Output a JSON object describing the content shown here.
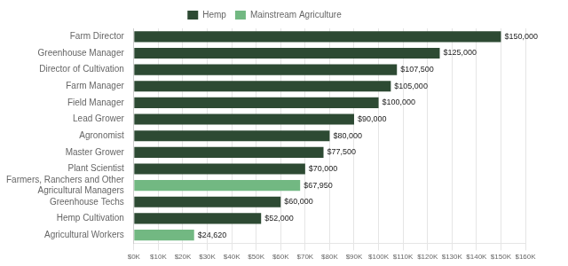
{
  "chart_data": {
    "type": "bar",
    "orientation": "horizontal",
    "stacked": true,
    "categories": [
      "Farm Director",
      "Greenhouse Manager",
      "Director of Cultivation",
      "Farm Manager",
      "Field Manager",
      "Lead Grower",
      "Agronomist",
      "Master Grower",
      "Plant Scientist",
      "Farmers, Ranchers and Other\nAgricultural Managers",
      "Greenhouse Techs",
      "Hemp Cultivation",
      "Agricultural Workers"
    ],
    "series": [
      {
        "name": "Hemp",
        "color": "#2d4a33",
        "values": [
          150000,
          125000,
          107500,
          105000,
          100000,
          90000,
          80000,
          77500,
          70000,
          null,
          60000,
          52000,
          null
        ],
        "value_labels": [
          "$150,000",
          "$125,000",
          "$107,500",
          "$105,000",
          "$100,000",
          "$90,000",
          "$80,000",
          "$77,500",
          "$70,000",
          null,
          "$60,000",
          "$52,000",
          null
        ]
      },
      {
        "name": "Mainstream Agriculture",
        "color": "#72b882",
        "values": [
          null,
          null,
          null,
          null,
          null,
          null,
          null,
          null,
          null,
          67950,
          null,
          null,
          24620
        ],
        "value_labels": [
          null,
          null,
          null,
          null,
          null,
          null,
          null,
          null,
          null,
          "$67,950",
          null,
          null,
          "$24,620"
        ]
      }
    ],
    "xlim": [
      0,
      160000
    ],
    "xticks": [
      {
        "value": 0,
        "label": "$0K"
      },
      {
        "value": 10000,
        "label": "$10K"
      },
      {
        "value": 20000,
        "label": "$20K"
      },
      {
        "value": 30000,
        "label": "$30K"
      },
      {
        "value": 40000,
        "label": "$40K"
      },
      {
        "value": 50000,
        "label": "$50K"
      },
      {
        "value": 60000,
        "label": "$60K"
      },
      {
        "value": 70000,
        "label": "$70K"
      },
      {
        "value": 80000,
        "label": "$80K"
      },
      {
        "value": 90000,
        "label": "$90K"
      },
      {
        "value": 100000,
        "label": "$100K"
      },
      {
        "value": 110000,
        "label": "$110K"
      },
      {
        "value": 120000,
        "label": "$120K"
      },
      {
        "value": 130000,
        "label": "$130K"
      },
      {
        "value": 140000,
        "label": "$140K"
      },
      {
        "value": 150000,
        "label": "$150K"
      },
      {
        "value": 160000,
        "label": "$160K"
      }
    ],
    "grid": true,
    "legend": "top",
    "data_labels": true
  }
}
